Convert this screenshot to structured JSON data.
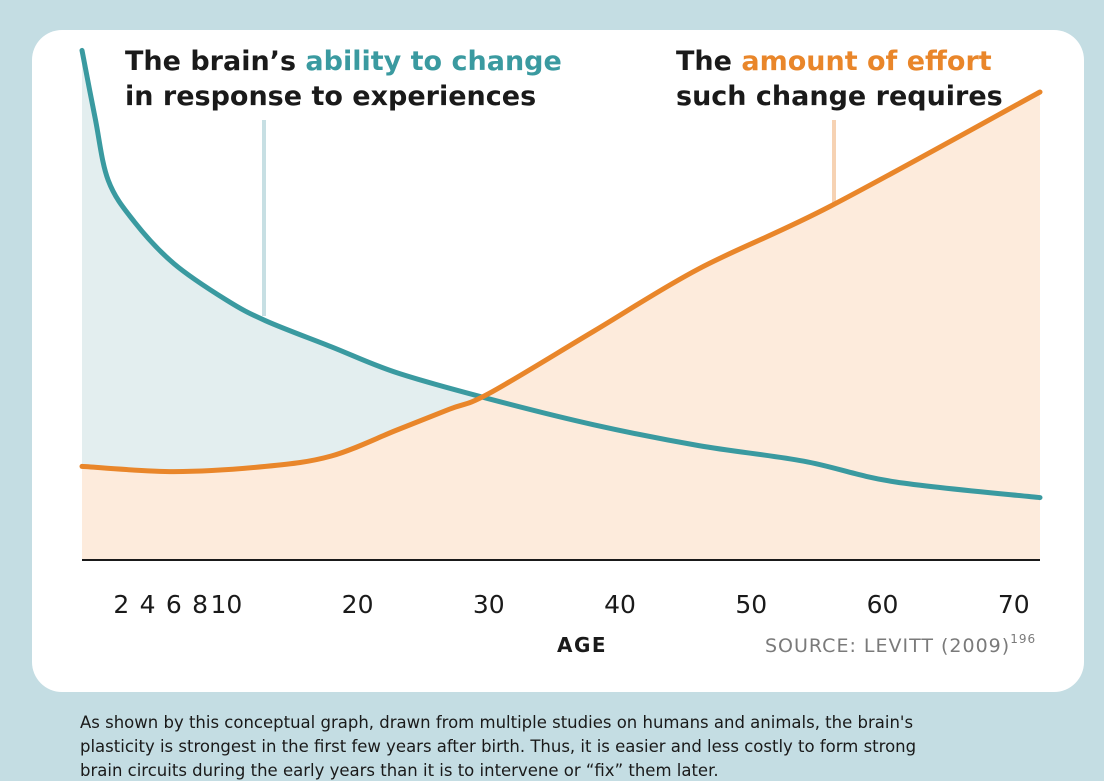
{
  "chart_data": {
    "type": "line",
    "annotations": {
      "left": {
        "line1_prefix": "The brain’s ",
        "line1_highlight": "ability to change",
        "line2": "in response to experiences"
      },
      "right": {
        "line1_prefix": "The ",
        "line1_highlight": "amount of effort",
        "line2": "such change requires"
      }
    },
    "xlabel": "AGE",
    "source": "SOURCE: LEVITT (2009)",
    "source_note": "196",
    "xlim": [
      -1,
      72
    ],
    "ylim": [
      0,
      100
    ],
    "xticks": [
      2,
      4,
      6,
      8,
      10,
      20,
      30,
      40,
      50,
      60,
      70
    ],
    "series": [
      {
        "color": "#3a9aa0",
        "fill": "#e3eeef",
        "x": [
          -1,
          0,
          1,
          3,
          6,
          10,
          13,
          18,
          23,
          30,
          38,
          46,
          54,
          61,
          72
        ],
        "values": [
          98,
          85,
          73,
          65,
          57,
          50,
          46,
          41,
          36,
          31,
          26,
          22,
          19,
          15,
          12
        ]
      },
      {
        "color": "#e9862a",
        "fill": "#fdebdc",
        "x": [
          -1,
          6,
          13,
          18,
          23,
          27,
          30,
          38,
          46,
          56,
          72
        ],
        "values": [
          18,
          17,
          18,
          20,
          25,
          29,
          32,
          44,
          56,
          68,
          90
        ]
      }
    ]
  },
  "caption": {
    "lines": [
      "As shown by this conceptual graph, drawn from multiple studies on humans and animals, the brain's",
      "plasticity is strongest in the first few years after birth. Thus, it is easier and less costly to form strong",
      "brain circuits during the early years than it is to intervene or “fix” them later."
    ]
  }
}
